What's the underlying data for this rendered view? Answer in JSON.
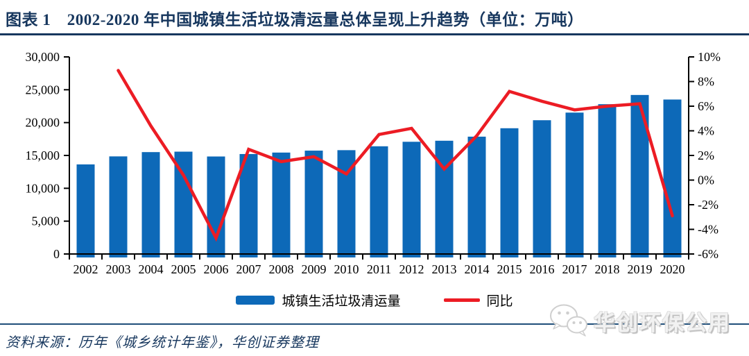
{
  "header": {
    "title": "图表 1　2002-2020 年中国城镇生活垃圾清运量总体呈现上升趋势（单位：万吨）"
  },
  "chart_data": {
    "type": "bar",
    "combo": "bar+line, dual axis",
    "categories": [
      "2002",
      "2003",
      "2004",
      "2005",
      "2006",
      "2007",
      "2008",
      "2009",
      "2010",
      "2011",
      "2012",
      "2013",
      "2014",
      "2015",
      "2016",
      "2017",
      "2018",
      "2019",
      "2020"
    ],
    "series": [
      {
        "name": "城镇生活垃圾清运量",
        "type": "bar",
        "axis": "left",
        "color": "#0D69B8",
        "values": [
          13638,
          14857,
          15509,
          15577,
          14841,
          15215,
          15438,
          15734,
          15805,
          16395,
          17081,
          17239,
          17860,
          19142,
          20362,
          21521,
          22802,
          24206,
          23512
        ]
      },
      {
        "name": "同比",
        "type": "line",
        "axis": "right",
        "color": "#EC1C24",
        "values": [
          null,
          8.9,
          4.4,
          0.4,
          -4.7,
          2.5,
          1.5,
          1.9,
          0.5,
          3.7,
          4.2,
          0.9,
          3.6,
          7.2,
          6.4,
          5.7,
          6.0,
          6.2,
          -2.9
        ]
      }
    ],
    "left_axis": {
      "min": 0,
      "max": 30000,
      "step": 5000,
      "tick_labels": [
        "30,000",
        "25,000",
        "20,000",
        "15,000",
        "10,000",
        "5,000",
        "0"
      ]
    },
    "right_axis": {
      "min": -6,
      "max": 10,
      "step": 2,
      "tick_labels": [
        "10%",
        "8%",
        "6%",
        "4%",
        "2%",
        "0%",
        "-2%",
        "-4%",
        "-6%"
      ]
    },
    "legend": [
      "城镇生活垃圾清运量",
      "同比"
    ],
    "legend_position": "bottom",
    "grid": false
  },
  "footer": {
    "source": "资料来源：历年《城乡统计年鉴》，华创证券整理",
    "watermark": "华创环保公用",
    "watermark_icon": "wechat-icon"
  },
  "colors": {
    "navy": "#17375E",
    "rule_navy": "#1F4E79",
    "bar_blue": "#0D69B8",
    "line_red": "#EC1C24",
    "axis_black": "#000000",
    "watermark_gray": "#D9D9D9"
  }
}
